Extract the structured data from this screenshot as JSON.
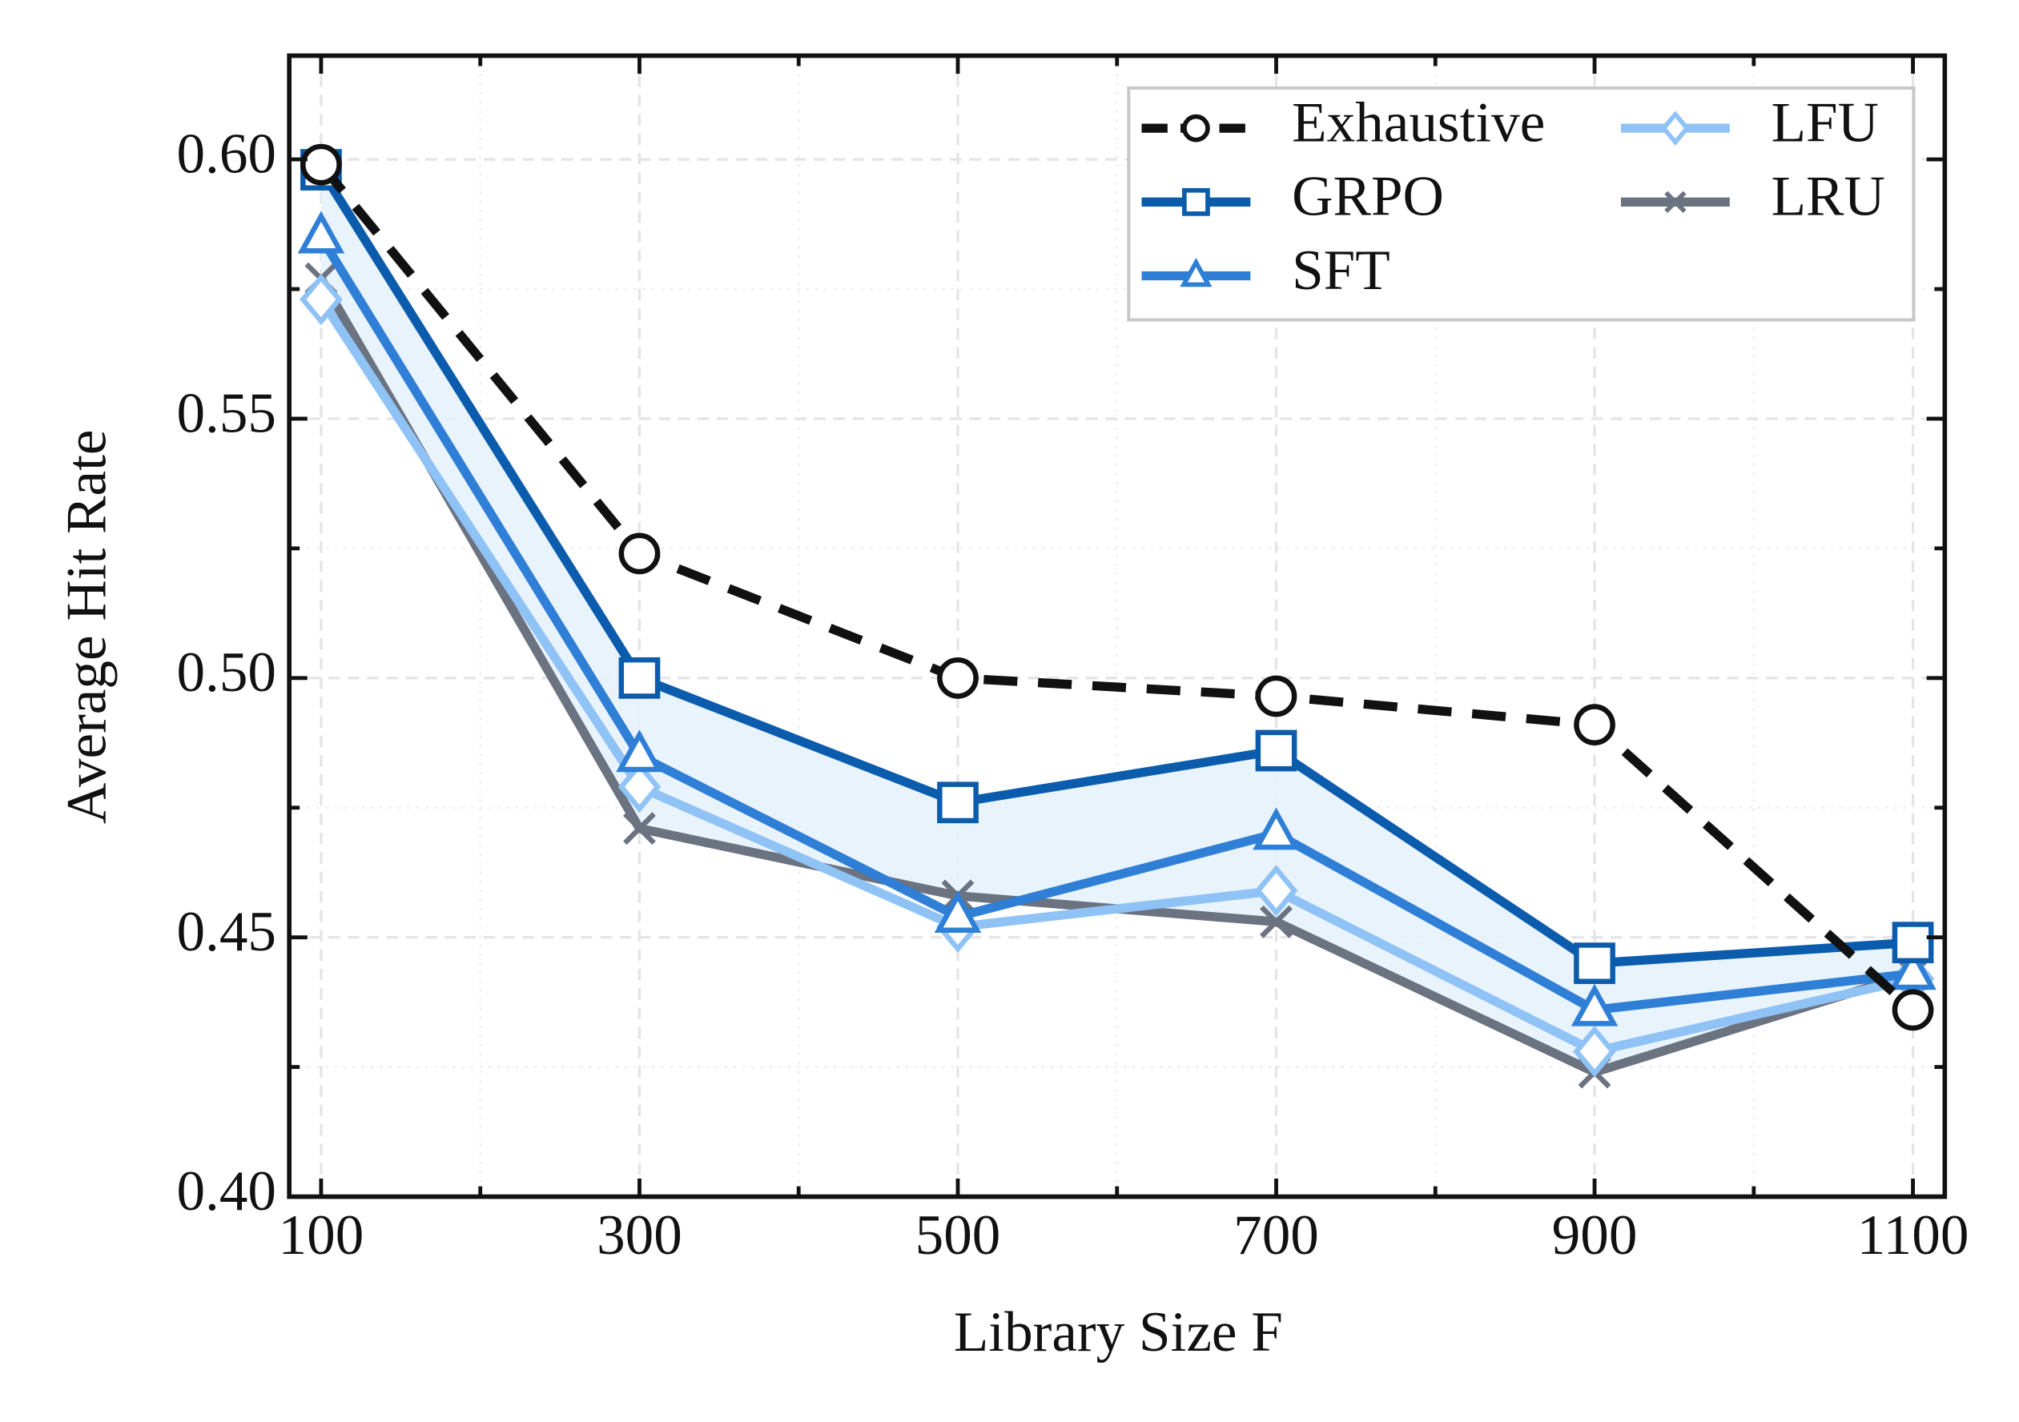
{
  "chart_data": {
    "type": "line",
    "xlabel": "Library Size F",
    "ylabel": "Average Hit Rate",
    "x": [
      100,
      300,
      500,
      700,
      900,
      1100
    ],
    "series": [
      {
        "name": "Exhaustive",
        "color": "#111111",
        "marker": "circle",
        "dash": true,
        "values": [
          0.599,
          0.524,
          0.5,
          0.4965,
          0.491,
          0.436
        ]
      },
      {
        "name": "GRPO",
        "color": "#0b5cad",
        "marker": "square",
        "values": [
          0.598,
          0.5,
          0.476,
          0.486,
          0.445,
          0.449
        ]
      },
      {
        "name": "SFT",
        "color": "#2f7fd6",
        "marker": "triangle",
        "values": [
          0.585,
          0.485,
          0.454,
          0.47,
          0.436,
          0.443
        ]
      },
      {
        "name": "LFU",
        "color": "#8fc2f5",
        "marker": "diamond",
        "values": [
          0.573,
          0.479,
          0.452,
          0.459,
          0.428,
          0.442
        ]
      },
      {
        "name": "LRU",
        "color": "#6b7280",
        "marker": "x",
        "values": [
          0.577,
          0.471,
          0.458,
          0.453,
          0.424,
          0.443
        ]
      }
    ],
    "xlim": [
      80,
      1120
    ],
    "ylim": [
      0.4,
      0.62
    ],
    "xticks": [
      100,
      300,
      500,
      700,
      900,
      1100
    ],
    "xticks_minor": [
      200,
      400,
      600,
      800,
      1000
    ],
    "yticks": [
      {
        "value": 0.4,
        "label": "0.40"
      },
      0.45,
      {
        "value": 0.5,
        "label": "0.50"
      },
      0.55,
      {
        "value": 0.6,
        "label": "0.60"
      }
    ],
    "yticks_minor": [
      0.425,
      0.475,
      0.525,
      0.575
    ],
    "grid": true,
    "legend": "upper right"
  }
}
